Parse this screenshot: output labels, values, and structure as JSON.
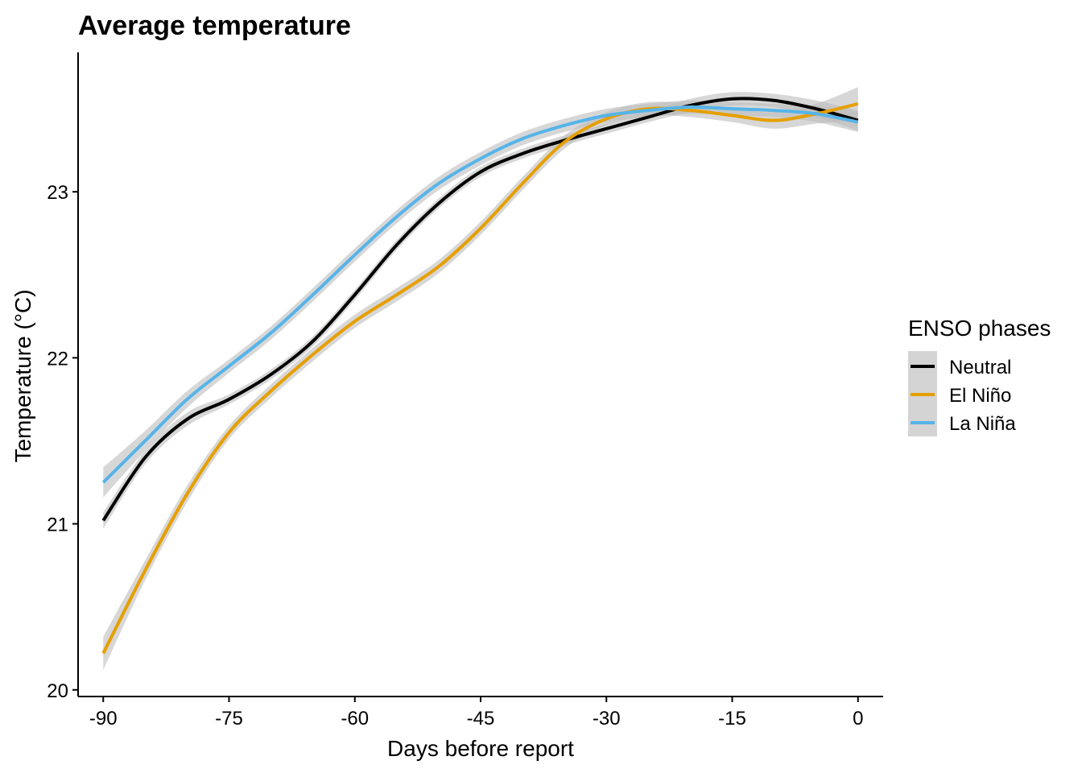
{
  "chart_data": {
    "type": "line",
    "title": "Average temperature",
    "xlabel": "Days before report",
    "ylabel": "Temperature (°C)",
    "xlim": [
      -93,
      3
    ],
    "ylim": [
      19.96,
      23.84
    ],
    "x_ticks": [
      -90,
      -75,
      -60,
      -45,
      -30,
      -15,
      0
    ],
    "x_tick_labels": [
      "-90",
      "-75",
      "-60",
      "-45",
      "-30",
      "-15",
      "0"
    ],
    "y_ticks": [
      20,
      21,
      22,
      23
    ],
    "y_tick_labels": [
      "20",
      "21",
      "22",
      "23"
    ],
    "grid": false,
    "legend": {
      "title": "ENSO phases",
      "position": "right"
    },
    "confidence_band": {
      "color": "#bdbdbd",
      "opacity": 0.6
    },
    "x": [
      -90,
      -85,
      -80,
      -75,
      -70,
      -65,
      -60,
      -55,
      -50,
      -45,
      -40,
      -35,
      -30,
      -25,
      -20,
      -15,
      -10,
      -5,
      0
    ],
    "series": [
      {
        "name": "Neutral",
        "color": "#000000",
        "values": [
          21.02,
          21.4,
          21.63,
          21.75,
          21.9,
          22.1,
          22.38,
          22.68,
          22.93,
          23.12,
          23.23,
          23.31,
          23.38,
          23.45,
          23.52,
          23.56,
          23.55,
          23.5,
          23.43
        ],
        "band": [
          0.05,
          0.04,
          0.04,
          0.03,
          0.03,
          0.03,
          0.03,
          0.03,
          0.03,
          0.03,
          0.03,
          0.03,
          0.03,
          0.03,
          0.04,
          0.04,
          0.04,
          0.05,
          0.06
        ]
      },
      {
        "name": "El Niño",
        "color": "#E69F00",
        "values": [
          20.22,
          20.72,
          21.18,
          21.55,
          21.8,
          22.02,
          22.22,
          22.38,
          22.55,
          22.78,
          23.05,
          23.3,
          23.44,
          23.5,
          23.49,
          23.46,
          23.43,
          23.47,
          23.53
        ],
        "band": [
          0.1,
          0.06,
          0.05,
          0.04,
          0.04,
          0.04,
          0.04,
          0.04,
          0.04,
          0.04,
          0.04,
          0.04,
          0.04,
          0.04,
          0.04,
          0.04,
          0.05,
          0.06,
          0.1
        ]
      },
      {
        "name": "La Niña",
        "color": "#56B4E9",
        "values": [
          21.25,
          21.5,
          21.75,
          21.95,
          22.15,
          22.38,
          22.62,
          22.85,
          23.05,
          23.2,
          23.32,
          23.4,
          23.46,
          23.49,
          23.51,
          23.5,
          23.49,
          23.47,
          23.42
        ],
        "band": [
          0.09,
          0.06,
          0.05,
          0.04,
          0.04,
          0.04,
          0.04,
          0.04,
          0.04,
          0.04,
          0.04,
          0.04,
          0.04,
          0.04,
          0.04,
          0.04,
          0.04,
          0.05,
          0.06
        ]
      }
    ]
  }
}
